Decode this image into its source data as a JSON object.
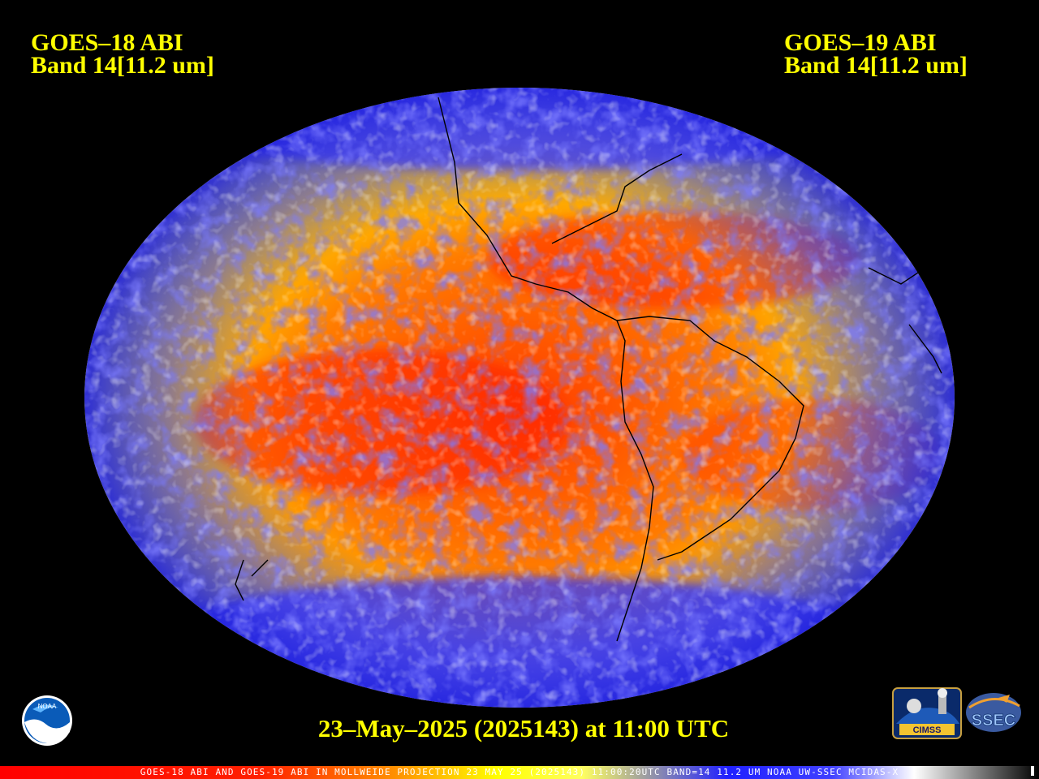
{
  "header": {
    "left_line1": "GOES–18 ABI",
    "left_line2": "Band 14[11.2 um]",
    "right_line1": "GOES–19 ABI",
    "right_line2": "Band 14[11.2 um]"
  },
  "timestamp": "23–May–2025 (2025143) at 11:00 UTC",
  "footer": "GOES-18 ABI AND GOES-19 ABI IN MOLLWEIDE PROJECTION 23 MAY 25 (2025143) 11:00:20UTC BAND=14 11.2 UM NOAA UW-SSEC MCIDAS-X",
  "logos": {
    "noaa": "NOAA",
    "cimss": "CIMSS",
    "ssec": "SSEC"
  },
  "colors": {
    "label": "#ffff00",
    "warm": "#ff2a00",
    "mid": "#ffc000",
    "cool": "#ffff40",
    "cold": "#3030ff",
    "coldest": "#ffffff"
  }
}
